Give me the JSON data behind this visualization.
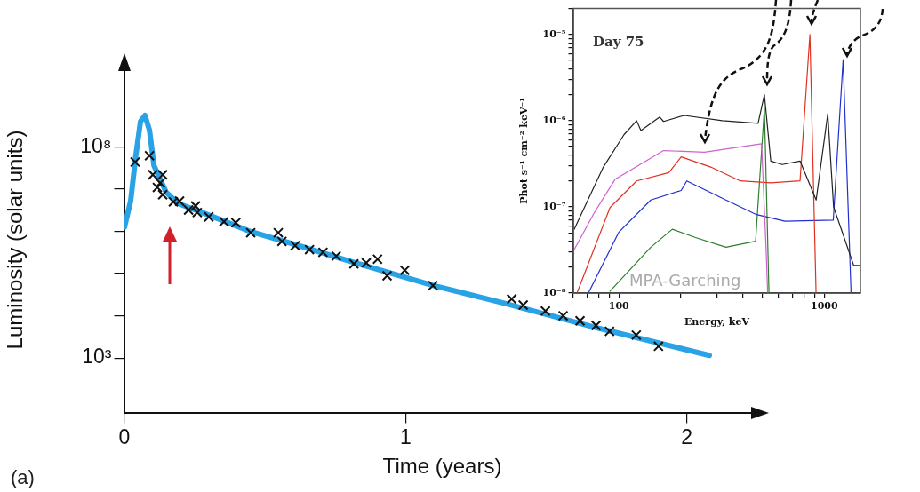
{
  "chart_data": [
    {
      "type": "line",
      "xlabel": "Time (years)",
      "ylabel": "Luminosity (solar units)",
      "log": "y",
      "xlim": [
        0,
        2.26
      ],
      "xticks": [
        0,
        1,
        2
      ],
      "ylim": [
        50,
        8000000000.0
      ],
      "yticks": [
        {
          "value": 1000,
          "label": "10³"
        },
        {
          "value": 10000,
          "label": null
        },
        {
          "value": 100000,
          "label": null
        },
        {
          "value": 1000000,
          "label": null
        },
        {
          "value": 10000000,
          "label": null
        },
        {
          "value": 100000000,
          "label": "10⁸"
        }
      ],
      "annotations": [
        "(a)"
      ],
      "series": [
        {
          "color": "#29a3e6",
          "marker": "none",
          "x": [
            0,
            0.022,
            0.04,
            0.057,
            0.073,
            0.089,
            0.105,
            0.148,
            0.19,
            0.295,
            0.45,
            0.61,
            0.82,
            1.1,
            1.35,
            1.67,
            2.08
          ],
          "values": [
            1260000.0,
            5200000.0,
            59000000.0,
            400000000.0,
            560000000.0,
            250000000.0,
            36000000.0,
            8500000.0,
            4600000.0,
            2500000.0,
            980000.0,
            480000.0,
            180000.0,
            52000.0,
            20000.0,
            5400.0,
            1150.0
          ]
        },
        {
          "type": "scatter",
          "color": "#111111",
          "marker": "cross",
          "x": [
            0.038,
            0.089,
            0.101,
            0.136,
            0.127,
            0.117,
            0.136,
            0.174,
            0.196,
            0.228,
            0.253,
            0.259,
            0.3,
            0.354,
            0.396,
            0.449,
            0.547,
            0.56,
            0.607,
            0.658,
            0.706,
            0.753,
            0.816,
            0.86,
            0.9,
            0.934,
            0.997,
            1.097,
            1.377,
            1.418,
            1.497,
            1.56,
            1.62,
            1.677,
            1.725,
            1.82,
            1.899
          ],
          "values": [
            44000000.0,
            62000000.0,
            22000000.0,
            22000000.0,
            14000000.0,
            11000000.0,
            7400000.0,
            5000000.0,
            5200000.0,
            3200000.0,
            4000000.0,
            2800000.0,
            2200000.0,
            1700000.0,
            1600000.0,
            930000.0,
            930000.0,
            580000.0,
            460000.0,
            370000.0,
            320000.0,
            260000.0,
            170000.0,
            180000.0,
            220000.0,
            89000.0,
            120000.0,
            52000.0,
            25000.0,
            18000.0,
            13000.0,
            10000.0,
            7600.0,
            5900.0,
            4300.0,
            3500.0,
            1900.0
          ]
        }
      ]
    },
    {
      "type": "line",
      "xlabel": "Energy, keV",
      "ylabel": "Phot s⁻¹ cm⁻² keV⁻¹",
      "log": "xy",
      "xlim": [
        60,
        1500
      ],
      "xticks": [
        {
          "value": 60,
          "label": null
        },
        {
          "value": 70,
          "label": null
        },
        {
          "value": 80,
          "label": null
        },
        {
          "value": 90,
          "label": null
        },
        100,
        {
          "value": 200,
          "label": null
        },
        {
          "value": 300,
          "label": null
        },
        {
          "value": 400,
          "label": null
        },
        {
          "value": 500,
          "label": null
        },
        {
          "value": 600,
          "label": null
        },
        {
          "value": 700,
          "label": null
        },
        {
          "value": 800,
          "label": null
        },
        {
          "value": 900,
          "label": null
        },
        1000
      ],
      "ylim": [
        1e-08,
        2e-05
      ],
      "yticks": [
        {
          "value": 1e-08,
          "label": "10⁻⁸"
        },
        {
          "value": 2e-08,
          "label": null
        },
        {
          "value": 3e-08,
          "label": null
        },
        {
          "value": 4e-08,
          "label": null
        },
        {
          "value": 5e-08,
          "label": null
        },
        {
          "value": 6e-08,
          "label": null
        },
        {
          "value": 7e-08,
          "label": null
        },
        {
          "value": 8e-08,
          "label": null
        },
        {
          "value": 9e-08,
          "label": null
        },
        {
          "value": 1e-07,
          "label": "10⁻⁷"
        },
        {
          "value": 2e-07,
          "label": null
        },
        {
          "value": 3e-07,
          "label": null
        },
        {
          "value": 4e-07,
          "label": null
        },
        {
          "value": 5e-07,
          "label": null
        },
        {
          "value": 6e-07,
          "label": null
        },
        {
          "value": 7e-07,
          "label": null
        },
        {
          "value": 8e-07,
          "label": null
        },
        {
          "value": 9e-07,
          "label": null
        },
        {
          "value": 1e-06,
          "label": "10⁻⁶"
        },
        {
          "value": 2e-06,
          "label": null
        },
        {
          "value": 3e-06,
          "label": null
        },
        {
          "value": 4e-06,
          "label": null
        },
        {
          "value": 5e-06,
          "label": null
        },
        {
          "value": 6e-06,
          "label": null
        },
        {
          "value": 7e-06,
          "label": null
        },
        {
          "value": 8e-06,
          "label": null
        },
        {
          "value": 9e-06,
          "label": null
        },
        {
          "value": 1e-05,
          "label": "10⁻⁵"
        },
        {
          "value": 2e-05,
          "label": null
        }
      ],
      "annotations": [
        "Day 75",
        "MPA-Garching"
      ],
      "series": [
        {
          "color": "#222222",
          "x": [
            60.6,
            84,
            106,
            122,
            128,
            158,
            165,
            208,
            319,
            476,
            511,
            549,
            624,
            762,
            913,
            1040,
            1110,
            1390,
            1500
          ],
          "values": [
            5.5e-08,
            2.9e-07,
            6.9e-07,
            1e-06,
            7.7e-07,
            1.1e-06,
            9.8e-07,
            1.15e-06,
            1e-06,
            9.3e-07,
            2e-06,
            3.4e-07,
            3.1e-07,
            3.4e-07,
            1.2e-07,
            1.2e-06,
            1e-07,
            2.1e-08,
            2.1e-08
          ]
        },
        {
          "color": "#d060d0",
          "x": [
            60.6,
            76,
            96,
            165,
            261,
            495,
            521,
            530
          ],
          "values": [
            3.2e-08,
            8.6e-08,
            2.1e-07,
            4.5e-07,
            4.3e-07,
            5.4e-07,
            3.2e-08,
            1e-08
          ]
        },
        {
          "color": "#e03020",
          "x": [
            62.5,
            90.5,
            122,
            175,
            201,
            280,
            390,
            548,
            762,
            851,
            912
          ],
          "values": [
            1e-08,
            9.8e-08,
            2e-07,
            2.5e-07,
            3.8e-07,
            2.9e-07,
            2e-07,
            1.9e-07,
            2e-07,
            1e-05,
            1e-08
          ]
        },
        {
          "color": "#2030d0",
          "x": [
            71,
            100,
            143,
            201,
            214,
            332,
            463,
            644,
            1106,
            1235,
            1350
          ],
          "values": [
            1e-08,
            5.1e-08,
            1.2e-07,
            1.55e-07,
            2e-07,
            1.2e-07,
            8.2e-08,
            6.8e-08,
            7e-08,
            5.1e-06,
            1e-08
          ]
        },
        {
          "color": "#2e7d2e",
          "x": [
            90.5,
            143,
            182,
            236,
            332,
            463,
            511,
            538
          ],
          "values": [
            1.05e-08,
            3.4e-08,
            5.5e-08,
            4.4e-08,
            3.4e-08,
            4e-08,
            1.4e-06,
            1e-08
          ]
        }
      ]
    }
  ]
}
